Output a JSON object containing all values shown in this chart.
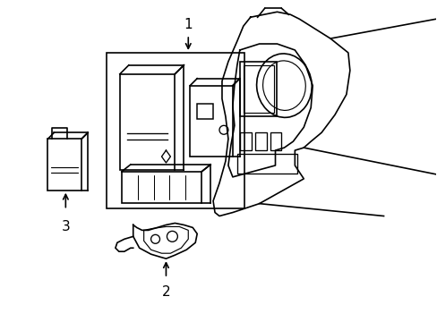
{
  "background_color": "#ffffff",
  "line_color": "#000000",
  "line_width": 1.2,
  "fig_width": 4.89,
  "fig_height": 3.6,
  "dpi": 100
}
